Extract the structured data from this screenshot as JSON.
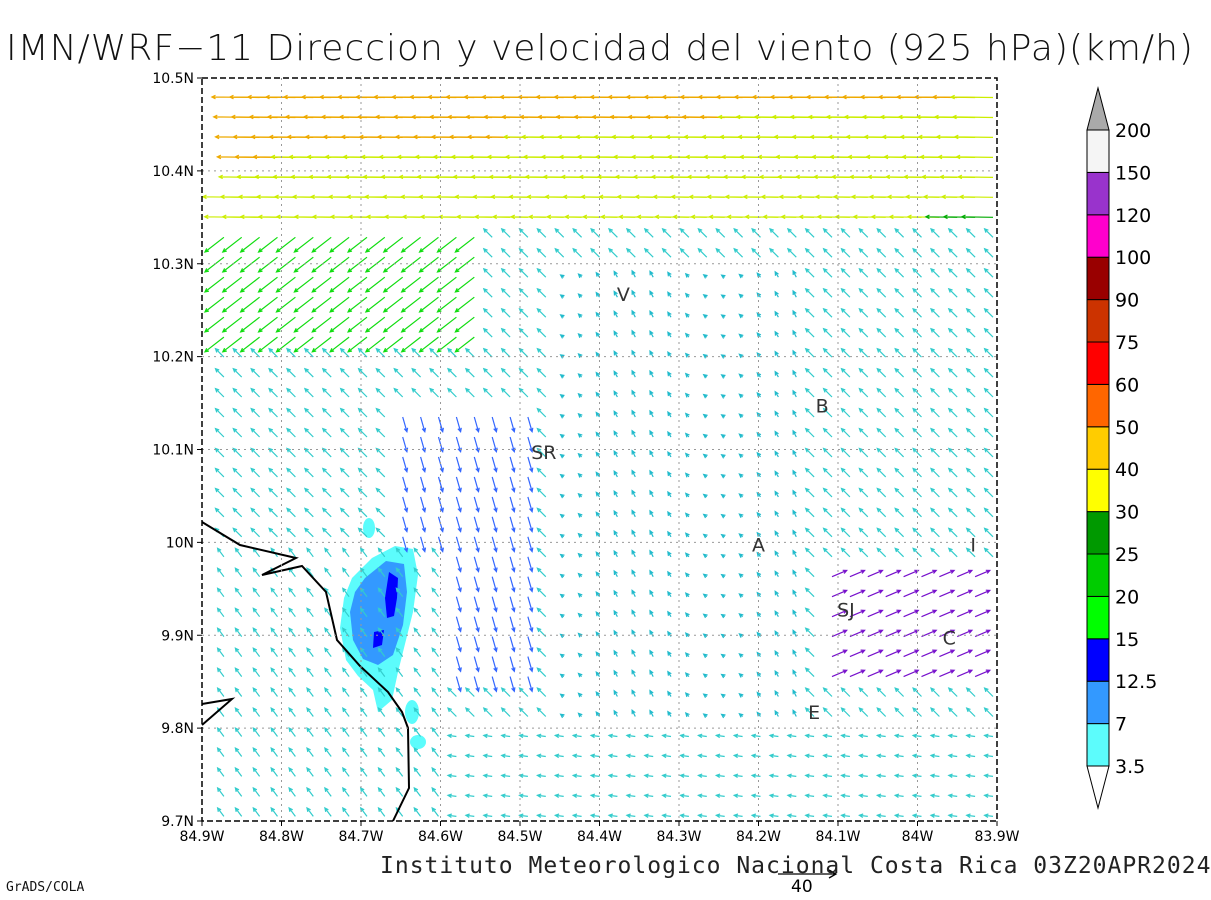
{
  "title": "IMN/WRF−11 Direccion y velocidad del viento (925 hPa)(km/h)",
  "footer": "Instituto Meteorologico Nacional Costa Rica 03Z20APR2024",
  "credit": "GrADS/COLA",
  "reference_vector": {
    "label": "40",
    "speed_kmh": 40
  },
  "map": {
    "lon_range": [
      -84.9,
      -83.9
    ],
    "lat_range": [
      9.7,
      10.5
    ],
    "x_ticks": [
      "84.9W",
      "84.8W",
      "84.7W",
      "84.6W",
      "84.5W",
      "84.4W",
      "84.3W",
      "84.2W",
      "84.1W",
      "84W",
      "83.9W"
    ],
    "y_ticks": [
      "9.7N",
      "9.8N",
      "9.9N",
      "10N",
      "10.1N",
      "10.2N",
      "10.3N",
      "10.4N",
      "10.5N"
    ],
    "grid": true,
    "place_labels": [
      {
        "text": "V",
        "lon": -84.37,
        "lat": 10.26
      },
      {
        "text": "SR",
        "lon": -84.47,
        "lat": 10.09
      },
      {
        "text": "B",
        "lon": -84.12,
        "lat": 10.14
      },
      {
        "text": "A",
        "lon": -84.2,
        "lat": 9.99
      },
      {
        "text": "SJ",
        "lon": -84.09,
        "lat": 9.92
      },
      {
        "text": "C",
        "lon": -83.96,
        "lat": 9.89
      },
      {
        "text": "E",
        "lon": -84.13,
        "lat": 9.81
      },
      {
        "text": "I",
        "lon": -83.93,
        "lat": 9.99
      }
    ]
  },
  "colorbar": {
    "levels": [
      "3.5",
      "7",
      "12.5",
      "15",
      "20",
      "25",
      "30",
      "40",
      "50",
      "60",
      "75",
      "90",
      "100",
      "120",
      "150",
      "200"
    ],
    "colors": [
      "#5cfcfc",
      "#3399ff",
      "#0000ff",
      "#00ff00",
      "#00cc00",
      "#009900",
      "#ffff00",
      "#ffcc00",
      "#ff6600",
      "#ff0000",
      "#cc3300",
      "#990000",
      "#ff00cc",
      "#9933cc",
      "#f5f5f5",
      "#aaaaaa"
    ]
  }
}
